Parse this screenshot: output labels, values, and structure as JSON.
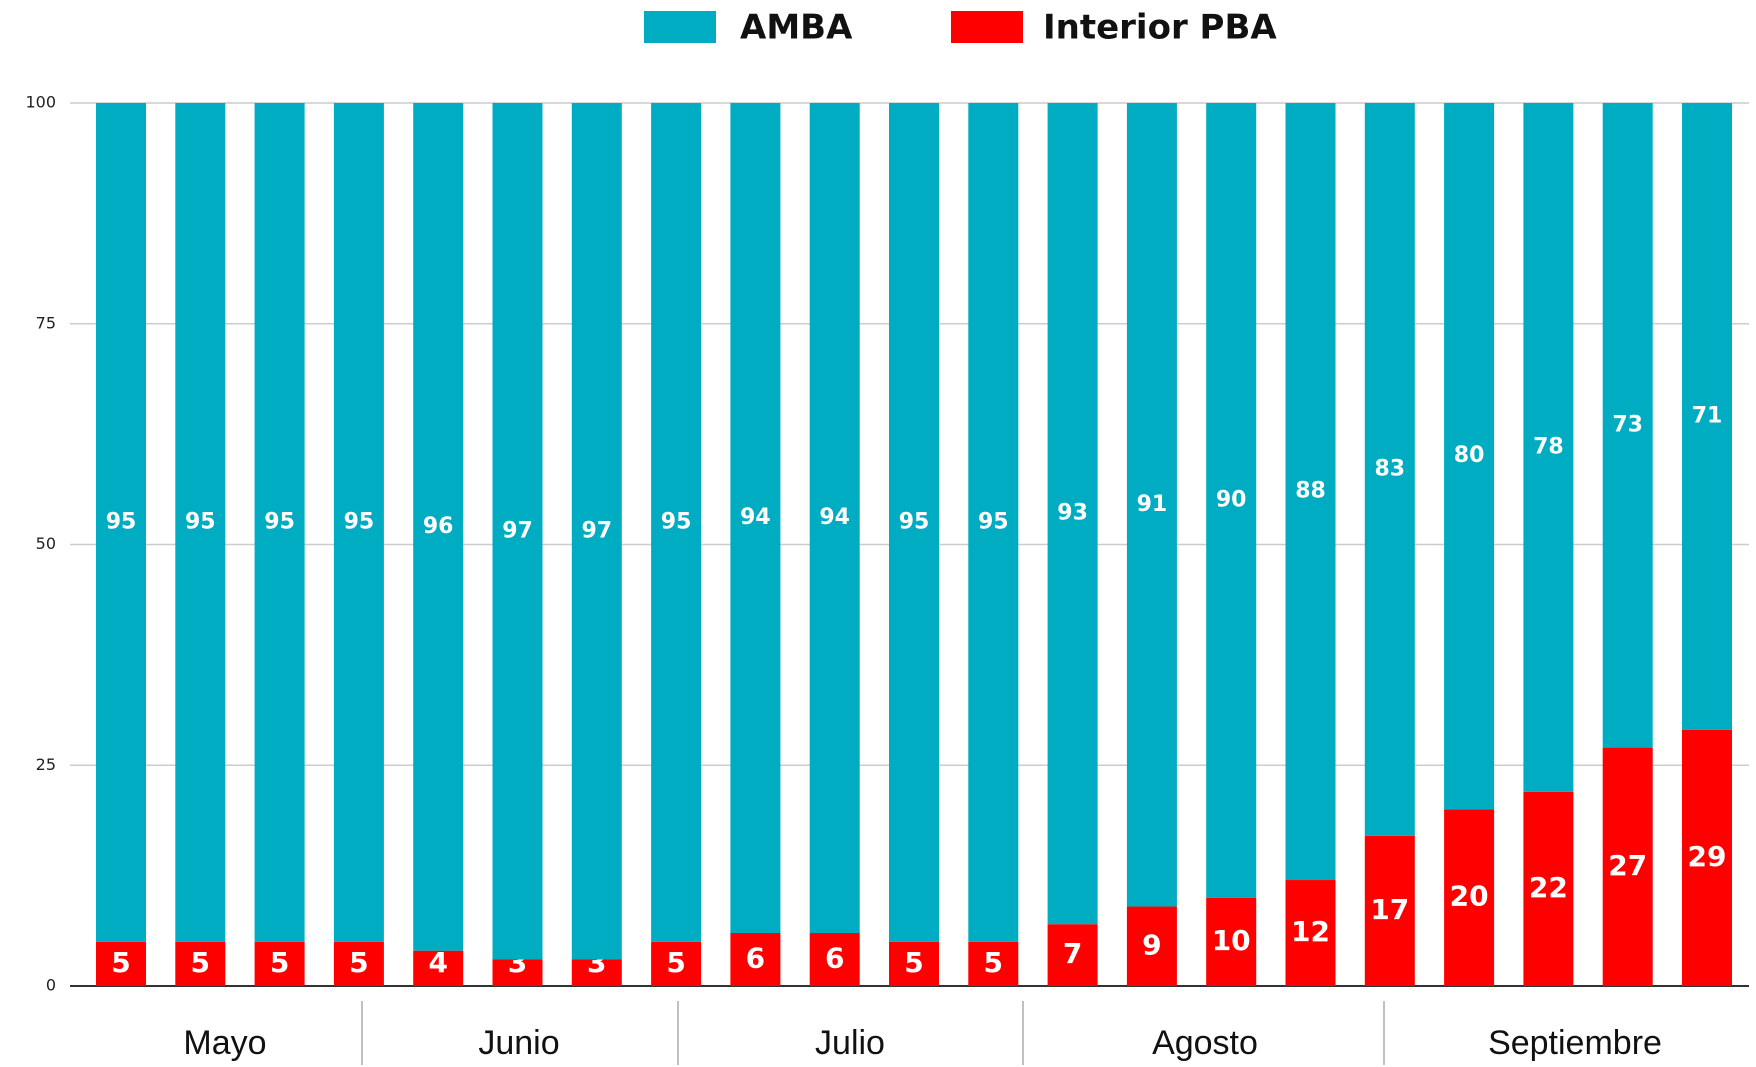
{
  "chart_data": {
    "type": "stacked_bar",
    "categories": [
      null,
      null,
      null,
      null,
      null,
      null,
      null,
      null,
      null,
      null,
      null,
      null,
      null,
      null,
      null,
      null,
      null,
      null,
      null,
      null,
      null
    ],
    "series": [
      {
        "name": "Interior PBA",
        "color": "#ff0000",
        "values": [
          5,
          5,
          5,
          5,
          4,
          3,
          3,
          5,
          6,
          6,
          5,
          5,
          7,
          9,
          10,
          12,
          17,
          20,
          22,
          27,
          29
        ]
      },
      {
        "name": "AMBA",
        "color": "#00acc1",
        "values": [
          95,
          95,
          95,
          95,
          96,
          97,
          97,
          95,
          94,
          94,
          95,
          95,
          93,
          91,
          90,
          88,
          83,
          80,
          78,
          73,
          71
        ]
      }
    ],
    "groups": [
      "Mayo",
      "Junio",
      "Julio",
      "Agosto",
      "Septiembre"
    ],
    "ylim": [
      0,
      100
    ],
    "yticks": [
      0,
      25,
      50,
      75,
      100
    ],
    "grid": true,
    "legend": "top"
  }
}
